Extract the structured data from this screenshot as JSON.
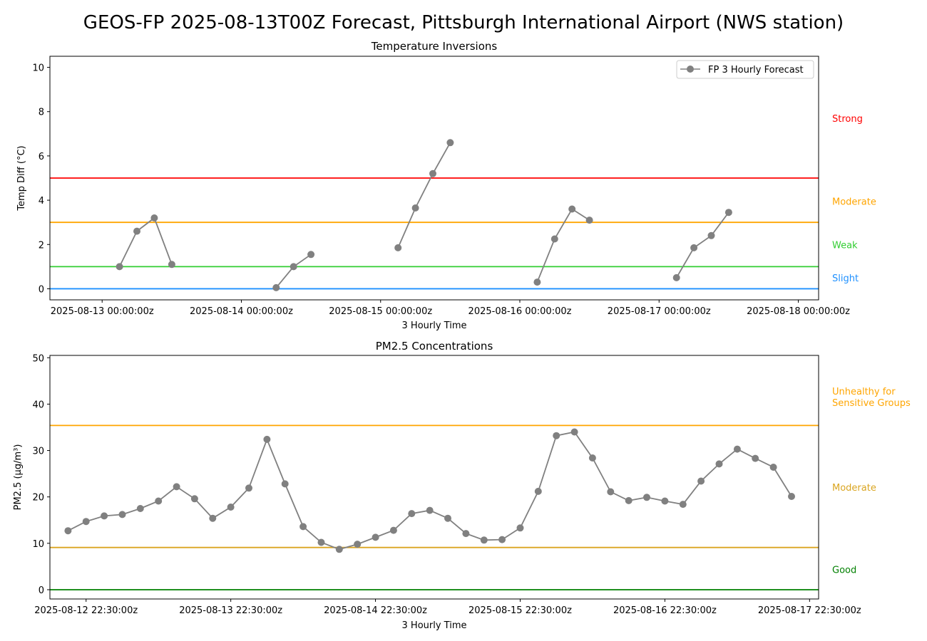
{
  "figure": {
    "title": "GEOS-FP 2025-08-13T00Z Forecast, Pittsburgh International Airport (NWS station)"
  },
  "colors": {
    "series": "#808080",
    "axis": "#000000"
  },
  "chart_data": [
    {
      "id": "inversions",
      "type": "line",
      "title": "Temperature Inversions",
      "xlabel": "3 Hourly Time",
      "ylabel": "Temp Diff (°C)",
      "ylim": [
        -0.5,
        10.5
      ],
      "yticks": [
        0,
        2,
        4,
        6,
        8,
        10
      ],
      "xlim_hours": [
        -9,
        123.5
      ],
      "xticks": [
        {
          "h": 0,
          "label": "2025-08-13 00:00:00z"
        },
        {
          "h": 24,
          "label": "2025-08-14 00:00:00z"
        },
        {
          "h": 48,
          "label": "2025-08-15 00:00:00z"
        },
        {
          "h": 72,
          "label": "2025-08-16 00:00:00z"
        },
        {
          "h": 96,
          "label": "2025-08-17 00:00:00z"
        },
        {
          "h": 120,
          "label": "2025-08-18 00:00:00z"
        }
      ],
      "grid": false,
      "legend": {
        "position": "top-right",
        "label": "FP 3 Hourly Forecast"
      },
      "series": [
        {
          "segments": [
            [
              {
                "h": 3,
                "y": 1.0
              },
              {
                "h": 6,
                "y": 2.6
              },
              {
                "h": 9,
                "y": 3.2
              },
              {
                "h": 12,
                "y": 1.1
              }
            ],
            [
              {
                "h": 30,
                "y": 0.05
              },
              {
                "h": 33,
                "y": 1.0
              },
              {
                "h": 36,
                "y": 1.55
              }
            ],
            [
              {
                "h": 51,
                "y": 1.85
              },
              {
                "h": 54,
                "y": 3.65
              },
              {
                "h": 57,
                "y": 5.2
              },
              {
                "h": 60,
                "y": 6.6
              }
            ],
            [
              {
                "h": 75,
                "y": 0.3
              },
              {
                "h": 78,
                "y": 2.25
              },
              {
                "h": 81,
                "y": 3.6
              },
              {
                "h": 84,
                "y": 3.1
              }
            ],
            [
              {
                "h": 99,
                "y": 0.5
              },
              {
                "h": 102,
                "y": 1.85
              },
              {
                "h": 105,
                "y": 2.4
              },
              {
                "h": 108,
                "y": 3.45
              }
            ]
          ]
        }
      ],
      "thresholds": [
        {
          "y": 5,
          "color": "#ff0000",
          "label": "Strong",
          "label_y": 7.7
        },
        {
          "y": 3,
          "color": "#ffa500",
          "label": "Moderate",
          "label_y": 3.95
        },
        {
          "y": 1,
          "color": "#32cd32",
          "label": "Weak",
          "label_y": 2.0
        },
        {
          "y": 0,
          "color": "#1e90ff",
          "label": "Slight",
          "label_y": 0.5
        }
      ]
    },
    {
      "id": "pm25",
      "type": "line",
      "title": "PM2.5 Concentrations",
      "xlabel": "3 Hourly Time",
      "ylabel": "PM2.5 (μg/m³)",
      "ylim": [
        -2,
        50.5
      ],
      "yticks": [
        0,
        10,
        20,
        30,
        40,
        50
      ],
      "xlim_hours": [
        -6,
        121.5
      ],
      "xticks": [
        {
          "h": 0,
          "label": "2025-08-12 22:30:00z"
        },
        {
          "h": 24,
          "label": "2025-08-13 22:30:00z"
        },
        {
          "h": 48,
          "label": "2025-08-14 22:30:00z"
        },
        {
          "h": 72,
          "label": "2025-08-15 22:30:00z"
        },
        {
          "h": 96,
          "label": "2025-08-16 22:30:00z"
        },
        {
          "h": 120,
          "label": "2025-08-17 22:30:00z"
        }
      ],
      "grid": false,
      "series": [
        {
          "start_h": -3,
          "step_h": 3,
          "values": [
            12.7,
            14.7,
            15.9,
            16.2,
            17.5,
            19.1,
            22.2,
            19.6,
            15.4,
            17.8,
            21.9,
            32.4,
            22.8,
            13.6,
            10.2,
            8.7,
            9.8,
            11.3,
            12.8,
            16.4,
            17.1,
            15.4,
            12.1,
            10.7,
            10.8,
            13.3,
            21.2,
            33.2,
            34.0,
            28.4,
            21.1,
            19.2,
            19.9,
            19.1,
            18.4,
            23.4,
            27.1,
            30.3,
            28.3,
            26.4,
            20.1
          ]
        }
      ],
      "thresholds": [
        {
          "y": 35.4,
          "color": "#ffa500",
          "label_lines": [
            "Unhealthy for",
            "Sensitive Groups"
          ],
          "label_y": 42.8
        },
        {
          "y": 9.1,
          "color": "#daa520",
          "label": "Moderate",
          "label_y": 22.1
        },
        {
          "y": 0,
          "color": "#008000",
          "label": "Good",
          "label_y": 4.4
        }
      ],
      "threshold_label_colors": [
        "#ffa500",
        "#daa520",
        "#008000"
      ]
    }
  ]
}
